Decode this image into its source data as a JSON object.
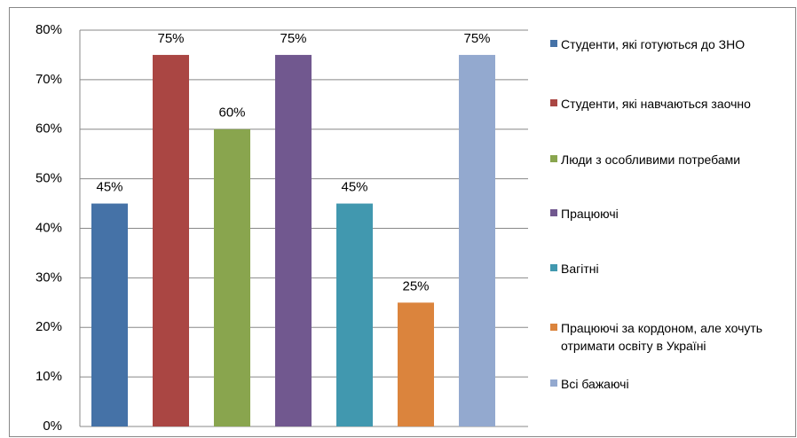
{
  "chart_data": {
    "type": "bar",
    "categories": [
      null
    ],
    "series": [
      {
        "name": "Студенти, які готуються до ЗНО",
        "color": "#4572a7",
        "values": [
          45
        ],
        "value_labels": [
          "45%"
        ]
      },
      {
        "name": "Студенти, які навчаються заочно",
        "color": "#aa4643",
        "values": [
          75
        ],
        "value_labels": [
          "75%"
        ]
      },
      {
        "name": "Люди з особливими потребами",
        "color": "#89a54e",
        "values": [
          60
        ],
        "value_labels": [
          "60%"
        ]
      },
      {
        "name": "Працюючі",
        "color": "#71588f",
        "values": [
          75
        ],
        "value_labels": [
          "75%"
        ]
      },
      {
        "name": "Вагітні",
        "color": "#4198af",
        "values": [
          45
        ],
        "value_labels": [
          "45%"
        ]
      },
      {
        "name": "Працюючі за кордоном, але хочуть отримати освіту в Україні",
        "color": "#db843d",
        "values": [
          25
        ],
        "value_labels": [
          "25%"
        ]
      },
      {
        "name": "Всі бажаючі",
        "color": "#93a9cf",
        "values": [
          75
        ],
        "value_labels": [
          "75%"
        ]
      }
    ],
    "ylim": [
      0,
      80
    ],
    "yticks": [
      {
        "value": 0,
        "label": "0%"
      },
      {
        "value": 10,
        "label": "10%"
      },
      {
        "value": 20,
        "label": "20%"
      },
      {
        "value": 30,
        "label": "30%"
      },
      {
        "value": 40,
        "label": "40%"
      },
      {
        "value": 50,
        "label": "50%"
      },
      {
        "value": 60,
        "label": "60%"
      },
      {
        "value": 70,
        "label": "70%"
      },
      {
        "value": 80,
        "label": "80%"
      }
    ],
    "grid": true,
    "legend": "right"
  }
}
